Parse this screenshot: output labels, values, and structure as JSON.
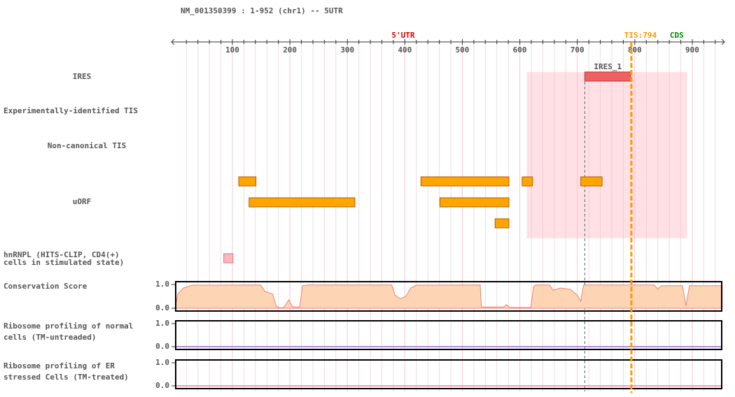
{
  "header": {
    "title": "NM_001350399 : 1-952 (chr1) -- 5UTR"
  },
  "axis": {
    "xlim": [
      1,
      952
    ],
    "xticks": [
      100,
      200,
      300,
      400,
      500,
      600,
      700,
      800,
      900
    ],
    "minor_xticks": [
      20,
      40,
      60,
      80,
      120,
      140,
      160,
      180,
      220,
      240,
      260,
      280,
      320,
      340,
      360,
      380,
      420,
      440,
      460,
      480,
      520,
      540,
      560,
      580,
      620,
      640,
      660,
      680,
      720,
      740,
      760,
      780,
      820,
      840,
      860,
      880,
      920,
      940
    ],
    "regions": [
      {
        "label": "5'UTR",
        "start": 1,
        "end": 793,
        "color": "#dd0000"
      },
      {
        "label": "CDS",
        "start": 794,
        "end": 952,
        "color": "#008800"
      }
    ],
    "tis": {
      "label": "TIS:794",
      "value": 794,
      "color": "#ff9900"
    }
  },
  "tracks": [
    {
      "type": "ires",
      "label": [
        "IRES"
      ],
      "features": [
        {
          "label": "IRES_1",
          "start": 713,
          "end": 793
        }
      ],
      "highlight": [
        612,
        891
      ],
      "color": "#f06060"
    },
    {
      "type": "empty",
      "label": [
        "Experimentally-identified TIS"
      ]
    },
    {
      "type": "empty",
      "label": [
        "Non-canonical TIS"
      ]
    },
    {
      "type": "uorf",
      "label": [
        "uORF"
      ],
      "color": "#ffa500",
      "rows": [
        [
          [
            111,
            141
          ],
          [
            428,
            581
          ],
          [
            604,
            622
          ],
          [
            706,
            743
          ]
        ],
        [
          [
            129,
            313
          ],
          [
            461,
            581
          ]
        ],
        [
          [
            557,
            581
          ]
        ]
      ]
    },
    {
      "type": "hnrnpl",
      "label": [
        "hnRNPL (HITS-CLIP, CD4(+)",
        "cells in stimulated state)"
      ],
      "color": "#ffb6c1",
      "features": [
        [
          85,
          101
        ]
      ]
    },
    {
      "type": "area",
      "label": [
        "Conservation Score"
      ],
      "color": "#f08070",
      "fill": "#fdd5b5",
      "ylim": [
        0,
        1
      ],
      "yticks": [
        {
          "value": 0,
          "label": "0.0"
        },
        {
          "value": 1,
          "label": "1.0"
        }
      ],
      "x": [
        1,
        5,
        15,
        30,
        149,
        157,
        170,
        176,
        181,
        189,
        198,
        205,
        217,
        222,
        232,
        377,
        383,
        392,
        402,
        410,
        420,
        531,
        533,
        572,
        577,
        582,
        619,
        624,
        627,
        652,
        658,
        670,
        688,
        700,
        706,
        711,
        834,
        840,
        846,
        883,
        889,
        895,
        952
      ],
      "values": [
        0.05,
        0.6,
        0.85,
        0.97,
        0.98,
        0.7,
        0.6,
        0.1,
        0.02,
        0.02,
        0.35,
        0.05,
        0.05,
        0.95,
        0.98,
        0.98,
        0.55,
        0.4,
        0.5,
        0.85,
        0.97,
        0.98,
        0.05,
        0.05,
        0.15,
        0.03,
        0.03,
        0.9,
        0.98,
        0.98,
        0.75,
        0.85,
        0.8,
        0.55,
        0.3,
        0.98,
        0.98,
        0.8,
        0.95,
        0.95,
        0.1,
        0.95,
        0.95
      ]
    },
    {
      "type": "line",
      "label": [
        "Ribosome profiling of normal",
        "cells (TM-untreaded)"
      ],
      "color": "#9966cc",
      "ylim": [
        0,
        1
      ],
      "yticks": [
        {
          "value": 0,
          "label": "0.0"
        },
        {
          "value": 1,
          "label": "1.0"
        }
      ],
      "x": [
        1,
        952
      ],
      "values": [
        0,
        0
      ]
    },
    {
      "type": "line",
      "label": [
        "Ribosome profiling of ER",
        "stressed Cells (TM-treated)"
      ],
      "color": "#ff7799",
      "ylim": [
        0,
        1
      ],
      "yticks": [
        {
          "value": 0,
          "label": "0.0"
        },
        {
          "value": 1,
          "label": "1.0"
        }
      ],
      "x": [
        1,
        952
      ],
      "values": [
        0,
        0
      ]
    }
  ]
}
